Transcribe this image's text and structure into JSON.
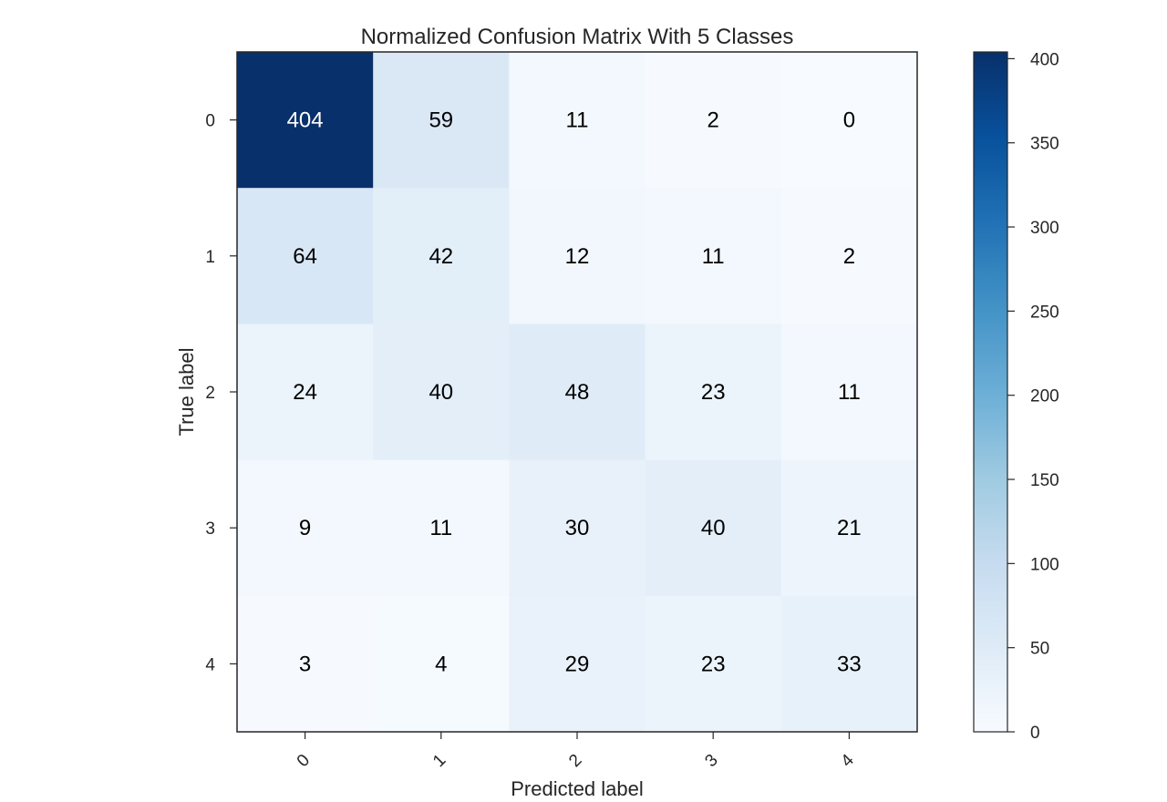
{
  "chart_data": {
    "type": "heatmap",
    "title": "Normalized Confusion Matrix With 5 Classes",
    "xlabel": "Predicted label",
    "ylabel": "True label",
    "x_categories": [
      "0",
      "1",
      "2",
      "3",
      "4"
    ],
    "y_categories": [
      "0",
      "1",
      "2",
      "3",
      "4"
    ],
    "values": [
      [
        404,
        59,
        11,
        2,
        0
      ],
      [
        64,
        42,
        12,
        11,
        2
      ],
      [
        24,
        40,
        48,
        23,
        11
      ],
      [
        9,
        11,
        30,
        40,
        21
      ],
      [
        3,
        4,
        29,
        23,
        33
      ]
    ],
    "colormap": "Blues",
    "colorbar": {
      "range": [
        0,
        404
      ],
      "ticks": [
        0,
        50,
        100,
        150,
        200,
        250,
        300,
        350,
        400
      ]
    },
    "grid": false
  }
}
